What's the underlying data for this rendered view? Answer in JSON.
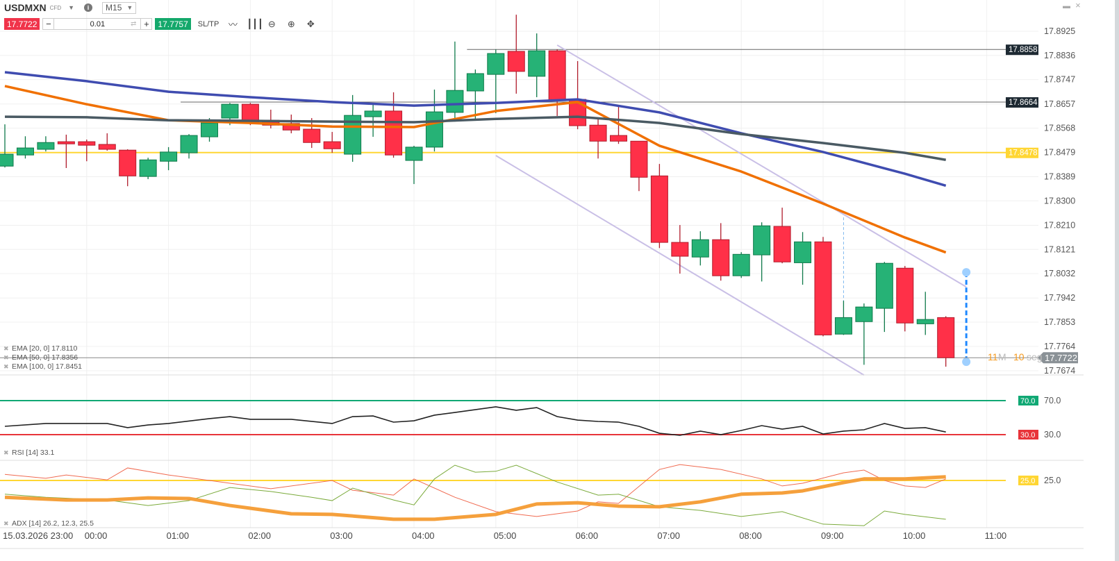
{
  "toolbar": {
    "symbol": "USDMXN",
    "symbol_type": "CFD",
    "timeframe": "M15",
    "sell_price": "17.7722",
    "buy_price": "17.7757",
    "volume": "0.01",
    "minus": "−",
    "plus": "+",
    "sltp_label": "SL/TP",
    "info_glyph": "i",
    "icons": [
      "line-chart-icon",
      "candlestick-icon",
      "zoom-out-icon",
      "zoom-in-icon",
      "crosshair-move-icon"
    ]
  },
  "window": {
    "minimize": "▬",
    "close": "×"
  },
  "colors": {
    "bull": "#26b276",
    "bear": "#ff3048",
    "ema20": "#f07000",
    "ema50": "#3f4cb0",
    "ema100": "#4a5a63",
    "level_yellow": "#ffd633",
    "rsi_line": "#222222",
    "rsi_70": "#10a874",
    "rsi_30": "#e8343a",
    "adx": "#f5a03c",
    "di_minus": "#f06a50",
    "di_plus": "#7aaa3a",
    "channel": "#c9bfe6",
    "countdown": "#f59a1f"
  },
  "chart_data": {
    "type": "candlestick",
    "symbol": "USDMXN",
    "timeframe": "M15",
    "date_label": "15.03.2026 23:00",
    "ylim": [
      17.7674,
      17.8925
    ],
    "y_ticks": [
      "17.8925",
      "17.8836",
      "17.8747",
      "17.8657",
      "17.8568",
      "17.8479",
      "17.8389",
      "17.8300",
      "17.8210",
      "17.8121",
      "17.8032",
      "17.7942",
      "17.7853",
      "17.7764",
      "17.7674"
    ],
    "x_ticks": [
      "15.03.2026 23:00",
      "00:00",
      "01:00",
      "02:00",
      "03:00",
      "04:00",
      "05:00",
      "06:00",
      "07:00",
      "08:00",
      "09:00",
      "10:00",
      "11:00"
    ],
    "grid": true,
    "candles": [
      {
        "t": "23:00",
        "o": 17.8428,
        "h": 17.8582,
        "l": 17.8423,
        "c": 17.8472
      },
      {
        "t": "23:15",
        "o": 17.8469,
        "h": 17.8538,
        "l": 17.8456,
        "c": 17.8495
      },
      {
        "t": "23:30",
        "o": 17.849,
        "h": 17.8538,
        "l": 17.8482,
        "c": 17.8515
      },
      {
        "t": "23:45",
        "o": 17.8518,
        "h": 17.8544,
        "l": 17.8421,
        "c": 17.851
      },
      {
        "t": "00:00",
        "o": 17.8518,
        "h": 17.8526,
        "l": 17.8446,
        "c": 17.8505
      },
      {
        "t": "00:15",
        "o": 17.8508,
        "h": 17.8549,
        "l": 17.8485,
        "c": 17.849
      },
      {
        "t": "00:30",
        "o": 17.8487,
        "h": 17.849,
        "l": 17.8354,
        "c": 17.8392
      },
      {
        "t": "00:45",
        "o": 17.839,
        "h": 17.8459,
        "l": 17.838,
        "c": 17.8451
      },
      {
        "t": "01:00",
        "o": 17.8446,
        "h": 17.8498,
        "l": 17.8413,
        "c": 17.848
      },
      {
        "t": "01:15",
        "o": 17.8477,
        "h": 17.8546,
        "l": 17.8456,
        "c": 17.8541
      },
      {
        "t": "01:30",
        "o": 17.8536,
        "h": 17.8605,
        "l": 17.8518,
        "c": 17.8587
      },
      {
        "t": "01:45",
        "o": 17.8605,
        "h": 17.8661,
        "l": 17.8579,
        "c": 17.8656
      },
      {
        "t": "02:00",
        "o": 17.8656,
        "h": 17.8661,
        "l": 17.8579,
        "c": 17.8587
      },
      {
        "t": "02:15",
        "o": 17.8597,
        "h": 17.8636,
        "l": 17.8567,
        "c": 17.8579
      },
      {
        "t": "02:30",
        "o": 17.8585,
        "h": 17.8618,
        "l": 17.8549,
        "c": 17.8561
      },
      {
        "t": "02:45",
        "o": 17.8564,
        "h": 17.8605,
        "l": 17.8495,
        "c": 17.8515
      },
      {
        "t": "03:00",
        "o": 17.8518,
        "h": 17.8554,
        "l": 17.8477,
        "c": 17.8492
      },
      {
        "t": "03:15",
        "o": 17.8472,
        "h": 17.869,
        "l": 17.8444,
        "c": 17.8615
      },
      {
        "t": "03:30",
        "o": 17.861,
        "h": 17.8656,
        "l": 17.8536,
        "c": 17.8631
      },
      {
        "t": "03:45",
        "o": 17.8631,
        "h": 17.87,
        "l": 17.8459,
        "c": 17.8469
      },
      {
        "t": "04:00",
        "o": 17.8449,
        "h": 17.8503,
        "l": 17.8362,
        "c": 17.8498
      },
      {
        "t": "04:15",
        "o": 17.8498,
        "h": 17.871,
        "l": 17.8482,
        "c": 17.8628
      },
      {
        "t": "04:30",
        "o": 17.8626,
        "h": 17.8887,
        "l": 17.8592,
        "c": 17.8707
      },
      {
        "t": "04:45",
        "o": 17.8705,
        "h": 17.8784,
        "l": 17.86,
        "c": 17.8769
      },
      {
        "t": "05:00",
        "o": 17.8766,
        "h": 17.8858,
        "l": 17.8623,
        "c": 17.8843
      },
      {
        "t": "05:15",
        "o": 17.8851,
        "h": 17.8986,
        "l": 17.8695,
        "c": 17.8777
      },
      {
        "t": "05:30",
        "o": 17.8759,
        "h": 17.8917,
        "l": 17.8682,
        "c": 17.8853
      },
      {
        "t": "05:45",
        "o": 17.8853,
        "h": 17.8858,
        "l": 17.8613,
        "c": 17.8669
      },
      {
        "t": "06:00",
        "o": 17.8674,
        "h": 17.8815,
        "l": 17.8564,
        "c": 17.8577
      },
      {
        "t": "06:15",
        "o": 17.8579,
        "h": 17.8605,
        "l": 17.8456,
        "c": 17.852
      },
      {
        "t": "06:30",
        "o": 17.8541,
        "h": 17.8649,
        "l": 17.851,
        "c": 17.852
      },
      {
        "t": "06:45",
        "o": 17.852,
        "h": 17.852,
        "l": 17.8336,
        "c": 17.8387
      },
      {
        "t": "07:00",
        "o": 17.8392,
        "h": 17.8436,
        "l": 17.8126,
        "c": 17.8147
      },
      {
        "t": "07:15",
        "o": 17.8147,
        "h": 17.8211,
        "l": 17.8032,
        "c": 17.8096
      },
      {
        "t": "07:30",
        "o": 17.8093,
        "h": 17.8188,
        "l": 17.8062,
        "c": 17.8157
      },
      {
        "t": "07:45",
        "o": 17.8157,
        "h": 17.8218,
        "l": 17.8006,
        "c": 17.8024
      },
      {
        "t": "08:00",
        "o": 17.8024,
        "h": 17.8111,
        "l": 17.8016,
        "c": 17.8103
      },
      {
        "t": "08:15",
        "o": 17.8101,
        "h": 17.8221,
        "l": 17.8003,
        "c": 17.8208
      },
      {
        "t": "08:30",
        "o": 17.8206,
        "h": 17.8275,
        "l": 17.807,
        "c": 17.8075
      },
      {
        "t": "08:45",
        "o": 17.8072,
        "h": 17.8185,
        "l": 17.7991,
        "c": 17.8149
      },
      {
        "t": "09:00",
        "o": 17.8149,
        "h": 17.8167,
        "l": 17.7801,
        "c": 17.7806
      },
      {
        "t": "09:15",
        "o": 17.7809,
        "h": 17.7932,
        "l": 17.7806,
        "c": 17.787
      },
      {
        "t": "09:30",
        "o": 17.7855,
        "h": 17.7922,
        "l": 17.7696,
        "c": 17.7909
      },
      {
        "t": "09:45",
        "o": 17.7904,
        "h": 17.8075,
        "l": 17.7817,
        "c": 17.807
      },
      {
        "t": "10:00",
        "o": 17.8052,
        "h": 17.806,
        "l": 17.7819,
        "c": 17.785
      },
      {
        "t": "10:15",
        "o": 17.7847,
        "h": 17.7965,
        "l": 17.7806,
        "c": 17.7863
      },
      {
        "t": "10:30",
        "o": 17.787,
        "h": 17.7875,
        "l": 17.7689,
        "c": 17.7722
      }
    ],
    "ema": [
      {
        "label": "EMA [20, 0] 17.8110",
        "color": "#f07000",
        "points": [
          [
            "23:00",
            17.8723
          ],
          [
            "00:00",
            17.8656
          ],
          [
            "01:00",
            17.8597
          ],
          [
            "02:00",
            17.8587
          ],
          [
            "03:00",
            17.8574
          ],
          [
            "04:00",
            17.8572
          ],
          [
            "05:00",
            17.8631
          ],
          [
            "06:00",
            17.8664
          ],
          [
            "07:00",
            17.8503
          ],
          [
            "08:00",
            17.8408
          ],
          [
            "09:00",
            17.829
          ],
          [
            "10:00",
            17.8165
          ],
          [
            "10:30",
            17.811
          ]
        ]
      },
      {
        "label": "EMA [50, 0] 17.8356",
        "color": "#3f4cb0",
        "points": [
          [
            "23:00",
            17.8774
          ],
          [
            "00:00",
            17.8741
          ],
          [
            "01:00",
            17.8702
          ],
          [
            "02:00",
            17.8682
          ],
          [
            "03:00",
            17.8664
          ],
          [
            "04:00",
            17.8651
          ],
          [
            "05:00",
            17.8661
          ],
          [
            "06:00",
            17.8674
          ],
          [
            "07:00",
            17.8626
          ],
          [
            "08:00",
            17.8549
          ],
          [
            "09:00",
            17.848
          ],
          [
            "10:00",
            17.84
          ],
          [
            "10:30",
            17.8356
          ]
        ]
      },
      {
        "label": "EMA [100, 0] 17.8451",
        "color": "#4a5a63",
        "points": [
          [
            "23:00",
            17.861
          ],
          [
            "00:00",
            17.8608
          ],
          [
            "01:00",
            17.8597
          ],
          [
            "02:00",
            17.8595
          ],
          [
            "03:00",
            17.8592
          ],
          [
            "04:00",
            17.859
          ],
          [
            "05:00",
            17.8602
          ],
          [
            "06:00",
            17.861
          ],
          [
            "07:00",
            17.8587
          ],
          [
            "08:00",
            17.8546
          ],
          [
            "09:00",
            17.8513
          ],
          [
            "10:00",
            17.8477
          ],
          [
            "10:30",
            17.8451
          ]
        ]
      }
    ],
    "levels": [
      {
        "price": "17.8858",
        "from": "04:45",
        "style": "dark"
      },
      {
        "price": "17.8664",
        "from": "01:15",
        "style": "dark"
      },
      {
        "price": "17.8478",
        "from": "23:00",
        "style": "yellow"
      }
    ],
    "current_price": "17.7722",
    "countdown": {
      "min": "11",
      "min_unit": "M",
      "sec": "10",
      "sec_unit": "seg"
    },
    "channel": [
      {
        "from": [
          "05:45",
          17.8874
        ],
        "to": [
          "10:45",
          17.7983
        ]
      },
      {
        "from": [
          "05:00",
          17.8467
        ],
        "to": [
          "09:30",
          17.7658
        ]
      }
    ],
    "measure_lines": [
      {
        "t": "09:15",
        "from": 17.8239,
        "to": 17.7875,
        "style": "light"
      },
      {
        "t": "10:45",
        "from": 17.8037,
        "to": 17.7707,
        "style": "bold"
      }
    ],
    "rsi": {
      "label": "RSI [14] 33.1",
      "ticks": [
        "70.0",
        "30.0"
      ],
      "overbought": "70.0",
      "oversold": "30.0",
      "points": [
        [
          "23:00",
          39.8
        ],
        [
          "23:30",
          43.1
        ],
        [
          "00:15",
          43.1
        ],
        [
          "00:30",
          38.2
        ],
        [
          "00:45",
          41.4
        ],
        [
          "01:00",
          43.1
        ],
        [
          "01:30",
          48.8
        ],
        [
          "01:45",
          51.2
        ],
        [
          "02:00",
          48.0
        ],
        [
          "02:30",
          48.0
        ],
        [
          "03:00",
          43.1
        ],
        [
          "03:15",
          51.2
        ],
        [
          "03:30",
          52.0
        ],
        [
          "03:45",
          44.7
        ],
        [
          "04:00",
          46.3
        ],
        [
          "04:15",
          52.9
        ],
        [
          "04:30",
          56.1
        ],
        [
          "05:00",
          62.7
        ],
        [
          "05:15",
          58.6
        ],
        [
          "05:30",
          61.8
        ],
        [
          "05:45",
          51.2
        ],
        [
          "06:00",
          47.1
        ],
        [
          "06:15",
          45.5
        ],
        [
          "06:30",
          44.7
        ],
        [
          "06:45",
          39.8
        ],
        [
          "07:00",
          31.6
        ],
        [
          "07:15",
          29.2
        ],
        [
          "07:30",
          34.1
        ],
        [
          "07:45",
          30.0
        ],
        [
          "08:00",
          34.9
        ],
        [
          "08:15",
          40.6
        ],
        [
          "08:30",
          36.5
        ],
        [
          "08:45",
          39.8
        ],
        [
          "09:00",
          30.8
        ],
        [
          "09:15",
          34.1
        ],
        [
          "09:30",
          35.7
        ],
        [
          "09:45",
          43.1
        ],
        [
          "10:00",
          37.3
        ],
        [
          "10:15",
          38.2
        ],
        [
          "10:30",
          33.1
        ]
      ]
    },
    "adx": {
      "label": "ADX [14] 26.2, 12.3, 25.5",
      "ticks": [
        "25.0"
      ],
      "threshold": "25.0",
      "adx": [
        [
          "23:00",
          19.5
        ],
        [
          "23:45",
          18.6
        ],
        [
          "00:15",
          18.6
        ],
        [
          "00:45",
          19.3
        ],
        [
          "01:15",
          19.1
        ],
        [
          "01:45",
          16.8
        ],
        [
          "02:30",
          14.1
        ],
        [
          "03:00",
          13.9
        ],
        [
          "03:45",
          12.3
        ],
        [
          "04:15",
          12.3
        ],
        [
          "05:00",
          13.9
        ],
        [
          "05:30",
          17.3
        ],
        [
          "06:00",
          17.7
        ],
        [
          "06:30",
          16.6
        ],
        [
          "07:00",
          16.4
        ],
        [
          "07:30",
          18.0
        ],
        [
          "08:00",
          20.5
        ],
        [
          "08:30",
          20.9
        ],
        [
          "08:45",
          21.6
        ],
        [
          "09:15",
          24.3
        ],
        [
          "09:30",
          25.5
        ],
        [
          "10:00",
          25.5
        ],
        [
          "10:30",
          26.2
        ]
      ],
      "di_plus": [
        [
          "23:00",
          20.5
        ],
        [
          "23:30",
          19.5
        ],
        [
          "00:15",
          18.6
        ],
        [
          "00:45",
          16.8
        ],
        [
          "01:15",
          18.4
        ],
        [
          "01:45",
          22.7
        ],
        [
          "02:15",
          21.4
        ],
        [
          "02:45",
          19.5
        ],
        [
          "03:00",
          18.4
        ],
        [
          "03:15",
          22.5
        ],
        [
          "03:45",
          18.6
        ],
        [
          "04:00",
          17.0
        ],
        [
          "04:15",
          25.5
        ],
        [
          "04:30",
          30.0
        ],
        [
          "04:45",
          27.7
        ],
        [
          "05:00",
          28.0
        ],
        [
          "05:15",
          30.0
        ],
        [
          "05:45",
          24.5
        ],
        [
          "06:15",
          20.2
        ],
        [
          "06:30",
          20.5
        ],
        [
          "07:00",
          16.4
        ],
        [
          "07:30",
          15.2
        ],
        [
          "08:00",
          13.2
        ],
        [
          "08:30",
          14.8
        ],
        [
          "09:00",
          10.7
        ],
        [
          "09:30",
          10.2
        ],
        [
          "09:45",
          15.0
        ],
        [
          "10:00",
          13.9
        ],
        [
          "10:30",
          12.3
        ]
      ],
      "di_minus": [
        [
          "23:00",
          27.0
        ],
        [
          "23:30",
          25.7
        ],
        [
          "23:45",
          26.8
        ],
        [
          "00:15",
          25.2
        ],
        [
          "00:30",
          29.1
        ],
        [
          "01:00",
          26.8
        ],
        [
          "01:30",
          25.0
        ],
        [
          "02:15",
          22.3
        ],
        [
          "03:00",
          25.0
        ],
        [
          "03:15",
          21.8
        ],
        [
          "03:45",
          20.2
        ],
        [
          "04:00",
          25.5
        ],
        [
          "04:30",
          19.5
        ],
        [
          "05:00",
          14.8
        ],
        [
          "05:30",
          13.2
        ],
        [
          "06:00",
          15.0
        ],
        [
          "06:15",
          18.0
        ],
        [
          "06:30",
          17.5
        ],
        [
          "07:00",
          28.6
        ],
        [
          "07:15",
          30.2
        ],
        [
          "07:45",
          28.6
        ],
        [
          "08:15",
          25.5
        ],
        [
          "08:30",
          23.2
        ],
        [
          "08:45",
          24.1
        ],
        [
          "09:15",
          27.5
        ],
        [
          "09:30",
          28.4
        ],
        [
          "09:45",
          25.0
        ],
        [
          "10:00",
          23.2
        ],
        [
          "10:15",
          22.7
        ],
        [
          "10:30",
          25.5
        ]
      ]
    }
  }
}
